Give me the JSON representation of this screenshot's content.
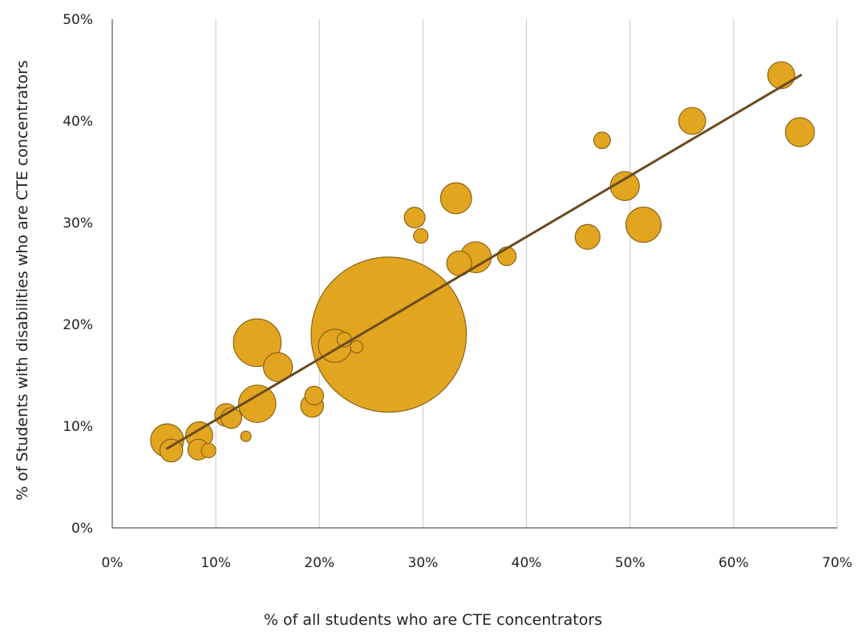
{
  "chart_data": {
    "type": "scatter",
    "title": "",
    "xlabel": "% of all students who are CTE concentrators",
    "ylabel": "% of Students with disabilities who are CTE concentrators",
    "xlim": [
      0,
      70
    ],
    "ylim": [
      0,
      50
    ],
    "x_ticks": [
      0,
      10,
      20,
      30,
      40,
      50,
      60,
      70
    ],
    "y_ticks": [
      0,
      10,
      20,
      30,
      40,
      50
    ],
    "x_tick_labels": [
      "0%",
      "10%",
      "20%",
      "30%",
      "40%",
      "50%",
      "60%",
      "70%"
    ],
    "y_tick_labels": [
      "0%",
      "10%",
      "20%",
      "30%",
      "40%",
      "50%"
    ],
    "vertical_grid": true,
    "horizontal_grid": false,
    "bubble_color": "#E2A51F",
    "bubble_edge_color": "#8C6418",
    "trendline_color": "#6B4A1C",
    "points": [
      {
        "x": 26.7,
        "y": 19.0,
        "r": 7.5
      },
      {
        "x": 14.0,
        "y": 18.2,
        "r": 2.3
      },
      {
        "x": 14.0,
        "y": 12.2,
        "r": 1.8
      },
      {
        "x": 16.0,
        "y": 15.8,
        "r": 1.4
      },
      {
        "x": 5.3,
        "y": 8.6,
        "r": 1.6
      },
      {
        "x": 5.7,
        "y": 7.6,
        "r": 1.1
      },
      {
        "x": 8.4,
        "y": 9.1,
        "r": 1.3
      },
      {
        "x": 8.3,
        "y": 7.7,
        "r": 1.0
      },
      {
        "x": 9.3,
        "y": 7.6,
        "r": 0.7
      },
      {
        "x": 11.0,
        "y": 11.1,
        "r": 1.1
      },
      {
        "x": 11.5,
        "y": 10.8,
        "r": 1.0
      },
      {
        "x": 12.9,
        "y": 9.0,
        "r": 0.5
      },
      {
        "x": 19.3,
        "y": 12.0,
        "r": 1.1
      },
      {
        "x": 19.5,
        "y": 13.0,
        "r": 0.9
      },
      {
        "x": 21.5,
        "y": 17.9,
        "r": 1.6
      },
      {
        "x": 22.4,
        "y": 18.5,
        "r": 0.7
      },
      {
        "x": 23.6,
        "y": 17.8,
        "r": 0.6
      },
      {
        "x": 29.2,
        "y": 30.5,
        "r": 1.0
      },
      {
        "x": 29.8,
        "y": 28.7,
        "r": 0.7
      },
      {
        "x": 33.2,
        "y": 32.4,
        "r": 1.5
      },
      {
        "x": 33.5,
        "y": 26.0,
        "r": 1.2
      },
      {
        "x": 35.1,
        "y": 26.6,
        "r": 1.5
      },
      {
        "x": 38.1,
        "y": 26.7,
        "r": 0.9
      },
      {
        "x": 45.9,
        "y": 28.6,
        "r": 1.2
      },
      {
        "x": 47.3,
        "y": 38.1,
        "r": 0.8
      },
      {
        "x": 49.5,
        "y": 33.6,
        "r": 1.4
      },
      {
        "x": 51.3,
        "y": 29.8,
        "r": 1.7
      },
      {
        "x": 56.0,
        "y": 40.0,
        "r": 1.3
      },
      {
        "x": 64.6,
        "y": 44.5,
        "r": 1.3
      },
      {
        "x": 66.4,
        "y": 38.9,
        "r": 1.4
      }
    ],
    "trendline": {
      "x": [
        5.3,
        66.5
      ],
      "y": [
        7.8,
        44.5
      ]
    }
  }
}
